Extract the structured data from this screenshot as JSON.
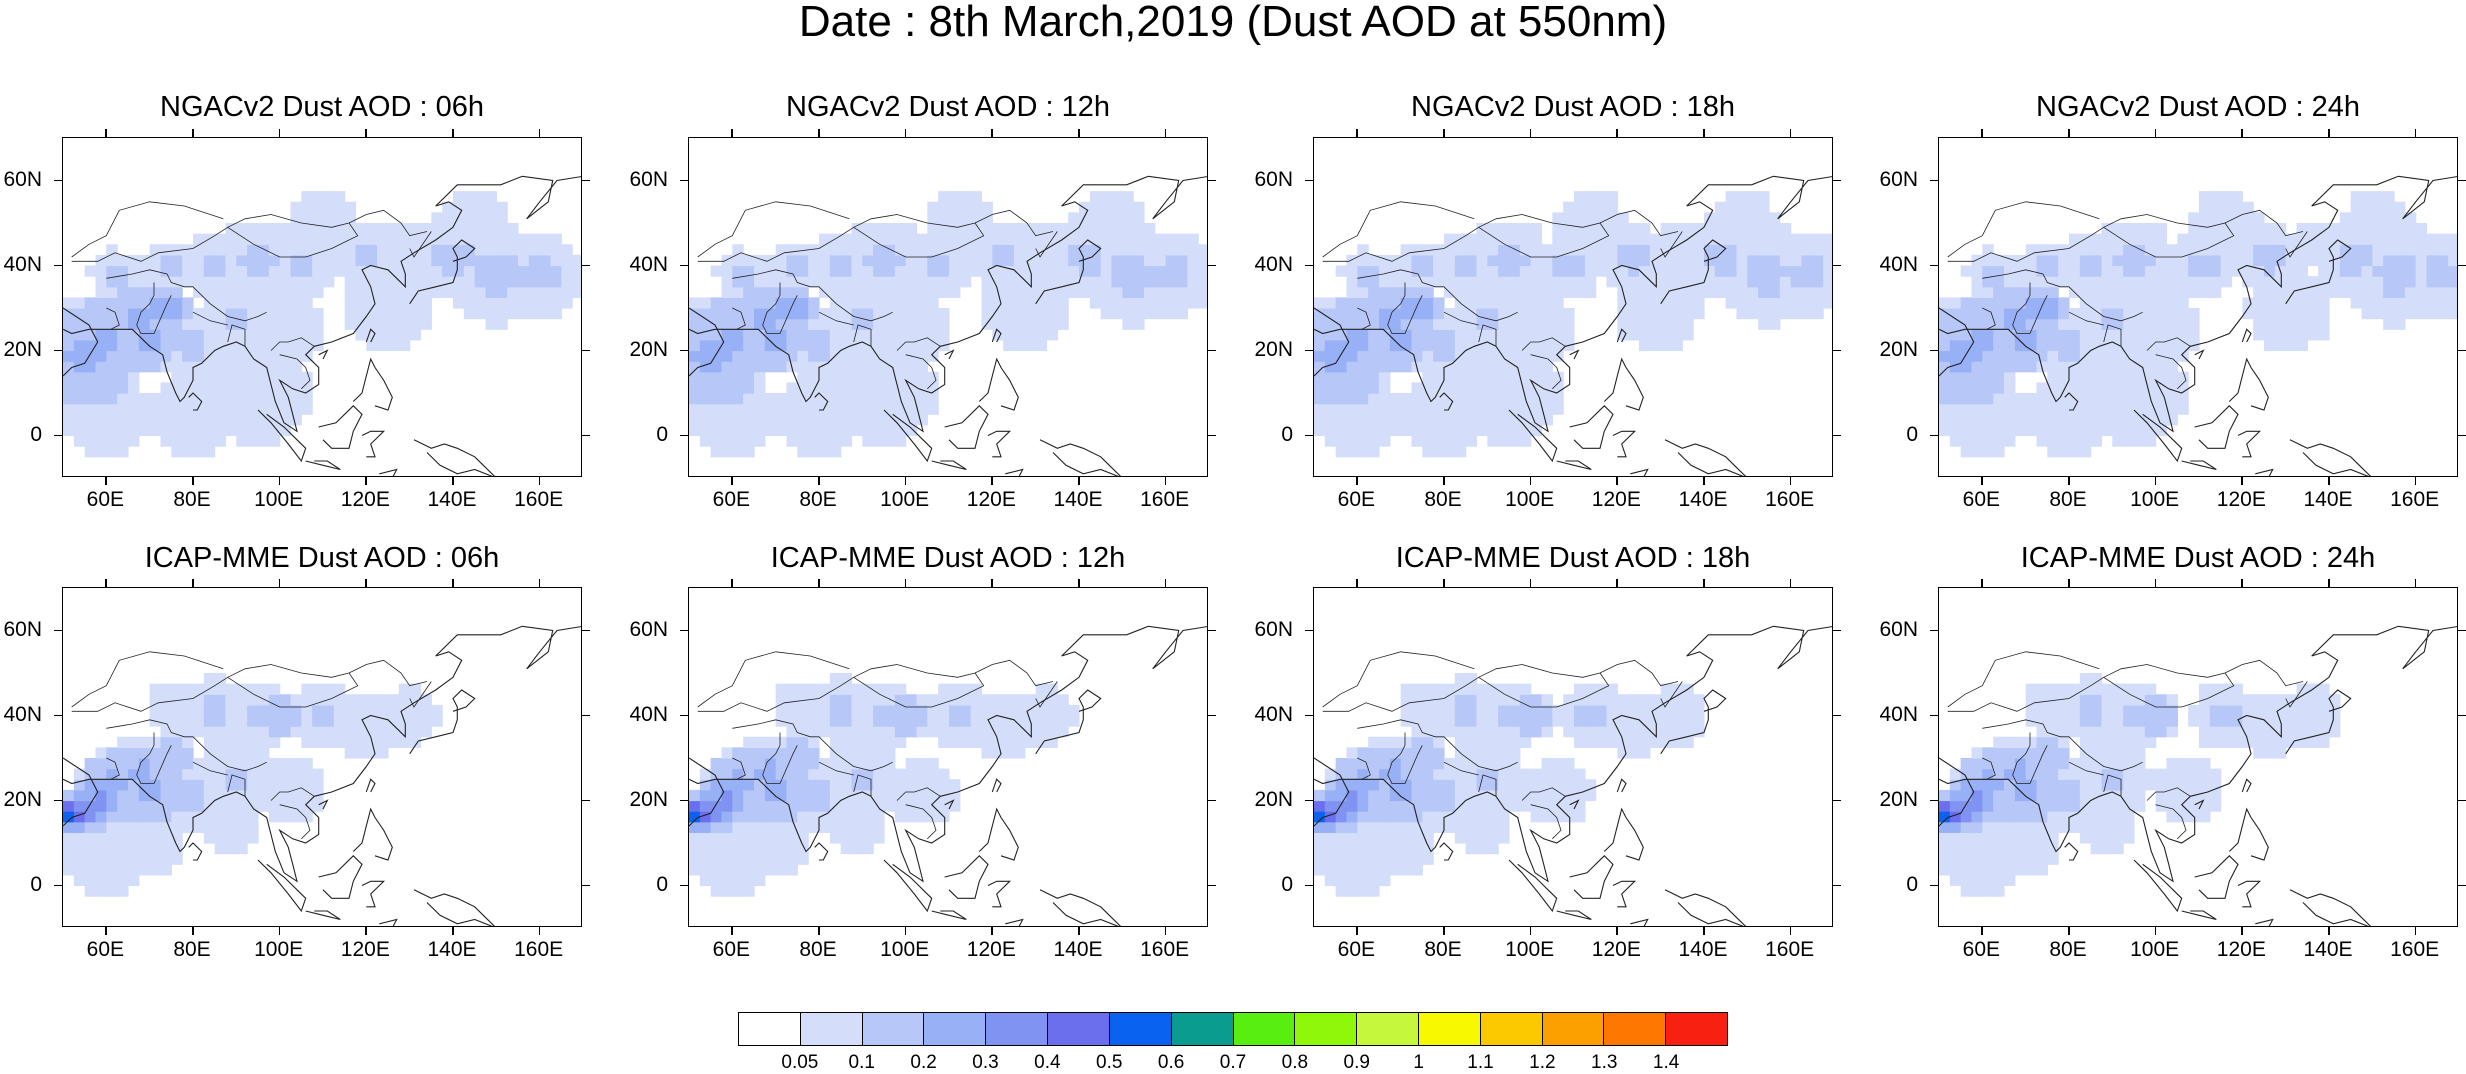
{
  "main_title": "Date : 8th March,2019 (Dust AOD at 550nm)",
  "panels": [
    {
      "title": "NGACv2 Dust AOD : 06h",
      "model": "ngac",
      "hour": 6
    },
    {
      "title": "NGACv2 Dust AOD : 12h",
      "model": "ngac",
      "hour": 12
    },
    {
      "title": "NGACv2 Dust AOD : 18h",
      "model": "ngac",
      "hour": 18
    },
    {
      "title": "NGACv2 Dust AOD : 24h",
      "model": "ngac",
      "hour": 24
    },
    {
      "title": "ICAP-MME Dust AOD : 06h",
      "model": "icap",
      "hour": 6
    },
    {
      "title": "ICAP-MME Dust AOD : 12h",
      "model": "icap",
      "hour": 12
    },
    {
      "title": "ICAP-MME Dust AOD : 18h",
      "model": "icap",
      "hour": 18
    },
    {
      "title": "ICAP-MME Dust AOD : 24h",
      "model": "icap",
      "hour": 24
    }
  ],
  "lat_labels": [
    "60N",
    "40N",
    "20N",
    "0"
  ],
  "lon_labels": [
    "60E",
    "80E",
    "100E",
    "120E",
    "140E",
    "160E"
  ],
  "colorbar": {
    "colors": [
      "#ffffff",
      "#d4defa",
      "#b6c7f8",
      "#98b0f6",
      "#8093f2",
      "#6b6fee",
      "#0a62f0",
      "#0b9c90",
      "#58ef10",
      "#8ef70a",
      "#c5f83a",
      "#f8f800",
      "#fcc800",
      "#fca000",
      "#fc7800",
      "#f82010"
    ],
    "labels": [
      "0.05",
      "0.1",
      "0.2",
      "0.3",
      "0.4",
      "0.5",
      "0.6",
      "0.7",
      "0.8",
      "0.9",
      "1",
      "1.1",
      "1.2",
      "1.3",
      "1.4"
    ]
  }
}
